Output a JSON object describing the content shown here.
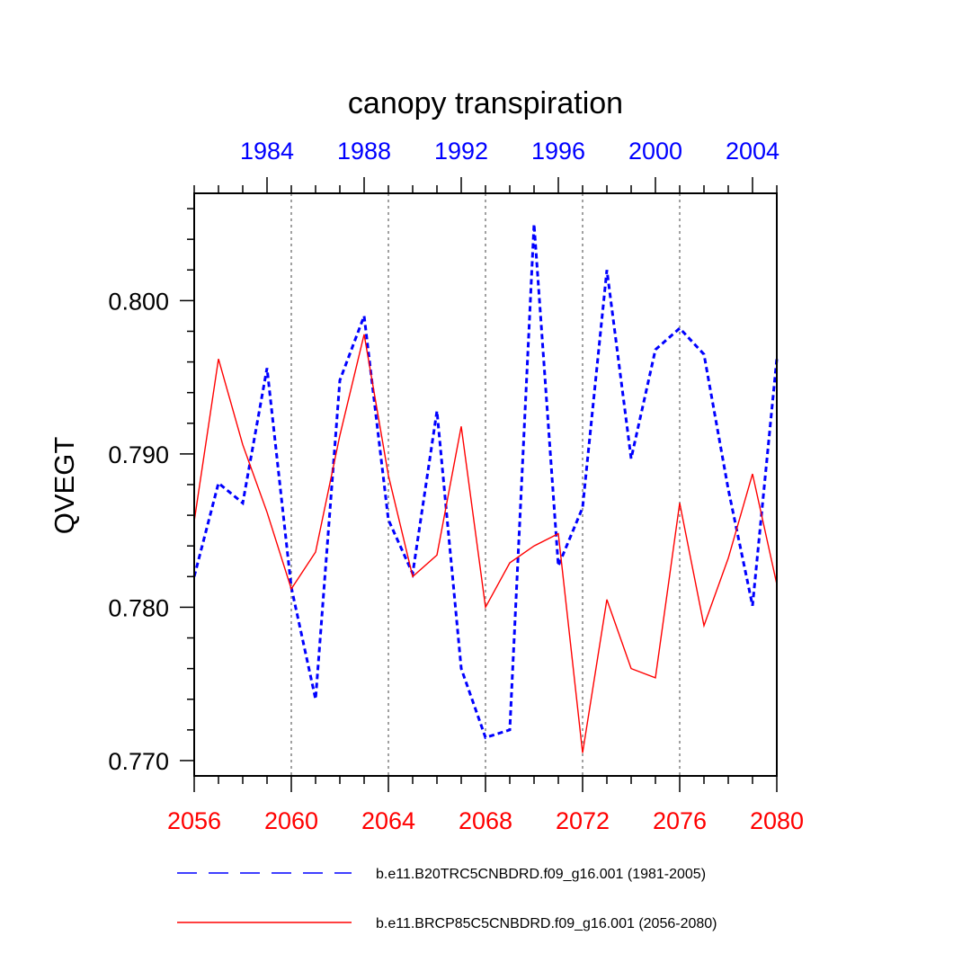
{
  "chart_data": {
    "type": "line",
    "title": "canopy transpiration",
    "ylabel": "QVEGT",
    "xlabel": "",
    "ylim": [
      0.769,
      0.807
    ],
    "y_ticks": [
      0.77,
      0.78,
      0.79,
      0.8
    ],
    "y_tick_labels": [
      "0.770",
      "0.780",
      "0.790",
      "0.800"
    ],
    "bottom_axis": {
      "range": [
        2056,
        2080
      ],
      "ticks": [
        2056,
        2060,
        2064,
        2068,
        2072,
        2076,
        2080
      ],
      "tick_labels": [
        "2056",
        "2060",
        "2064",
        "2068",
        "2072",
        "2076",
        "2080"
      ],
      "color": "#ff0000"
    },
    "top_axis": {
      "range": [
        1981,
        2005
      ],
      "ticks": [
        1984,
        1988,
        1992,
        1996,
        2000,
        2004
      ],
      "tick_labels": [
        "1984",
        "1988",
        "1992",
        "1996",
        "2000",
        "2004"
      ],
      "color": "#0000ff"
    },
    "grid": "vertical dotted at major bottom ticks",
    "legend_position": "bottom",
    "series": [
      {
        "name": "b.e11.B20TRC5CNBDRD.f09_g16.001 (1981-2005)",
        "axis": "top",
        "color": "#0000ff",
        "style": "dashed",
        "x": [
          1981,
          1982,
          1983,
          1984,
          1985,
          1986,
          1987,
          1988,
          1989,
          1990,
          1991,
          1992,
          1993,
          1994,
          1995,
          1996,
          1997,
          1998,
          1999,
          2000,
          2001,
          2002,
          2003,
          2004,
          2005
        ],
        "values": [
          0.782,
          0.7881,
          0.7868,
          0.7956,
          0.7813,
          0.774,
          0.7948,
          0.799,
          0.7857,
          0.7822,
          0.7928,
          0.776,
          0.7715,
          0.772,
          0.805,
          0.7827,
          0.7865,
          0.802,
          0.7897,
          0.7968,
          0.7982,
          0.7965,
          0.7877,
          0.7801,
          0.7962
        ]
      },
      {
        "name": "b.e11.BRCP85C5CNBDRD.f09_g16.001 (2056-2080)",
        "axis": "bottom",
        "color": "#ff0000",
        "style": "solid",
        "x": [
          2056,
          2057,
          2058,
          2059,
          2060,
          2061,
          2062,
          2063,
          2064,
          2065,
          2066,
          2067,
          2068,
          2069,
          2070,
          2071,
          2072,
          2073,
          2074,
          2075,
          2076,
          2077,
          2078,
          2079,
          2080
        ],
        "values": [
          0.7856,
          0.7962,
          0.7906,
          0.7862,
          0.7812,
          0.7836,
          0.7912,
          0.7978,
          0.7886,
          0.782,
          0.7834,
          0.7918,
          0.78,
          0.7829,
          0.784,
          0.7848,
          0.7705,
          0.7805,
          0.776,
          0.7754,
          0.7868,
          0.7788,
          0.7832,
          0.7887,
          0.7815
        ]
      }
    ]
  }
}
